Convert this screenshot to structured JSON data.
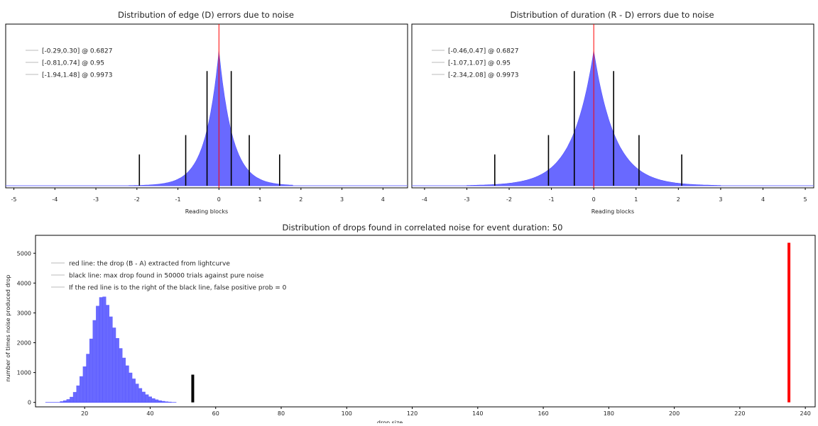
{
  "chart_data": [
    {
      "type": "bar",
      "title": "Distribution of edge (D) errors due to noise",
      "xlabel": "Reading blocks",
      "ylabel": "",
      "xlim": [
        -5.2,
        4.6
      ],
      "ylim": [
        0,
        1
      ],
      "xticks": [
        "-5",
        "-4",
        "-3",
        "-2",
        "-1",
        "0",
        "1",
        "2",
        "3",
        "4"
      ],
      "histogram": {
        "color": "#4444ff",
        "center": 0.0,
        "peak": 1.0,
        "scale_left": 0.33,
        "scale_right": 0.33,
        "range": [
          -2.2,
          1.8
        ]
      },
      "vlines": [
        {
          "x": -1.94,
          "height": 0.21,
          "color": "#000000"
        },
        {
          "x": -0.81,
          "height": 0.34,
          "color": "#000000"
        },
        {
          "x": -0.29,
          "height": 0.77,
          "color": "#000000"
        },
        {
          "x": 0.0,
          "height": 1.23,
          "color": "#ff0000"
        },
        {
          "x": 0.3,
          "height": 0.77,
          "color": "#000000"
        },
        {
          "x": 0.74,
          "height": 0.34,
          "color": "#000000"
        },
        {
          "x": 1.48,
          "height": 0.21,
          "color": "#000000"
        }
      ],
      "legend": [
        "[-0.29,0.30] @ 0.6827",
        "[-0.81,0.74] @ 0.95",
        "[-1.94,1.48] @ 0.9973"
      ],
      "legend_position": "top-left",
      "grid": false
    },
    {
      "type": "bar",
      "title": "Distribution of duration (R - D) errors due to noise",
      "xlabel": "Reading blocks",
      "ylabel": "",
      "xlim": [
        -4.3,
        5.2
      ],
      "ylim": [
        0,
        1
      ],
      "xticks": [
        "-4",
        "-3",
        "-2",
        "-1",
        "0",
        "1",
        "2",
        "3",
        "4",
        "5"
      ],
      "histogram": {
        "color": "#4444ff",
        "center": 0.0,
        "peak": 1.0,
        "scale_left": 0.5,
        "scale_right": 0.5,
        "range": [
          -3.0,
          3.0
        ]
      },
      "vlines": [
        {
          "x": -2.34,
          "height": 0.21,
          "color": "#000000"
        },
        {
          "x": -1.07,
          "height": 0.34,
          "color": "#000000"
        },
        {
          "x": -0.46,
          "height": 0.77,
          "color": "#000000"
        },
        {
          "x": 0.0,
          "height": 1.23,
          "color": "#ff0000"
        },
        {
          "x": 0.47,
          "height": 0.77,
          "color": "#000000"
        },
        {
          "x": 1.07,
          "height": 0.34,
          "color": "#000000"
        },
        {
          "x": 2.08,
          "height": 0.21,
          "color": "#000000"
        }
      ],
      "legend": [
        "[-0.46,0.47] @ 0.6827",
        "[-1.07,1.07] @ 0.95",
        "[-2.34,2.08] @ 0.9973"
      ],
      "legend_position": "top-left",
      "grid": false
    },
    {
      "type": "bar",
      "title": "Distribution of drops found in correlated noise for event duration: 50",
      "xlabel": "drop size",
      "ylabel": "number of times noise produced drop",
      "xlim": [
        5,
        243
      ],
      "ylim": [
        -150,
        5600
      ],
      "xticks": [
        20,
        40,
        60,
        80,
        100,
        120,
        140,
        160,
        180,
        200,
        220,
        240
      ],
      "yticks": [
        0,
        1000,
        2000,
        3000,
        4000,
        5000
      ],
      "histogram": {
        "color": "#4444ff",
        "bins": [
          {
            "x": 13,
            "y": 30
          },
          {
            "x": 14,
            "y": 60
          },
          {
            "x": 15,
            "y": 100
          },
          {
            "x": 16,
            "y": 180
          },
          {
            "x": 17,
            "y": 340
          },
          {
            "x": 18,
            "y": 560
          },
          {
            "x": 19,
            "y": 870
          },
          {
            "x": 20,
            "y": 1200
          },
          {
            "x": 21,
            "y": 1620
          },
          {
            "x": 22,
            "y": 2130
          },
          {
            "x": 23,
            "y": 2750
          },
          {
            "x": 24,
            "y": 3230
          },
          {
            "x": 25,
            "y": 3520
          },
          {
            "x": 26,
            "y": 3540
          },
          {
            "x": 27,
            "y": 3260
          },
          {
            "x": 28,
            "y": 2870
          },
          {
            "x": 29,
            "y": 2500
          },
          {
            "x": 30,
            "y": 2150
          },
          {
            "x": 31,
            "y": 1810
          },
          {
            "x": 32,
            "y": 1490
          },
          {
            "x": 33,
            "y": 1230
          },
          {
            "x": 34,
            "y": 990
          },
          {
            "x": 35,
            "y": 790
          },
          {
            "x": 36,
            "y": 620
          },
          {
            "x": 37,
            "y": 470
          },
          {
            "x": 38,
            "y": 350
          },
          {
            "x": 39,
            "y": 260
          },
          {
            "x": 40,
            "y": 190
          },
          {
            "x": 41,
            "y": 130
          },
          {
            "x": 42,
            "y": 90
          },
          {
            "x": 43,
            "y": 60
          },
          {
            "x": 44,
            "y": 40
          },
          {
            "x": 45,
            "y": 25
          },
          {
            "x": 46,
            "y": 15
          }
        ]
      },
      "vlines": [
        {
          "x": 53,
          "y0": 0,
          "y1": 930,
          "color": "#000000"
        },
        {
          "x": 235,
          "y0": 0,
          "y1": 5350,
          "color": "#ff0000"
        }
      ],
      "legend": [
        "red line: the drop (B - A) extracted from lightcurve",
        "black line: max drop found in 50000 trials against pure noise",
        "If the red line is to the right of the black line, false positive prob = 0"
      ],
      "legend_position": "top-left",
      "grid": false
    }
  ]
}
